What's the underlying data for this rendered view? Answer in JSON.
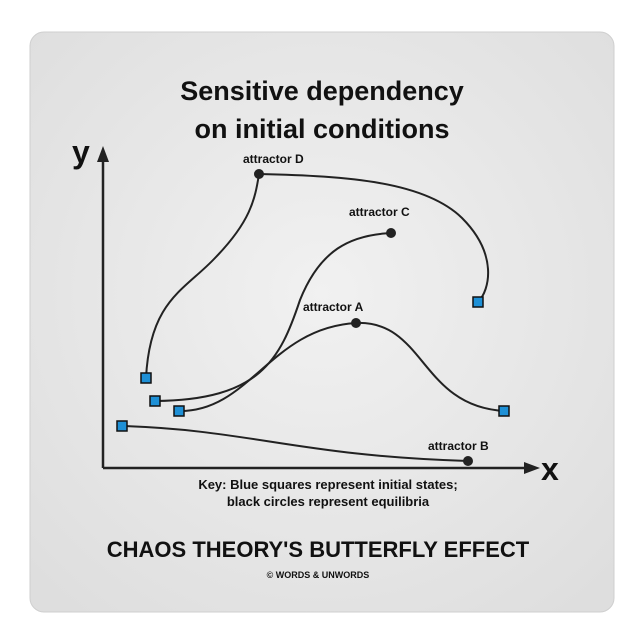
{
  "title": [
    "Sensitive dependency",
    "on initial conditions"
  ],
  "axes": {
    "y": "y",
    "x": "x"
  },
  "attractors": [
    "attractor D",
    "attractor C",
    "attractor A",
    "attractor B"
  ],
  "key": [
    "Key: Blue squares represent initial states;",
    "black circles represent equilibria"
  ],
  "caption": "CHAOS THEORY'S BUTTERFLY EFFECT",
  "credit": "© WORDS & UNWORDS"
}
